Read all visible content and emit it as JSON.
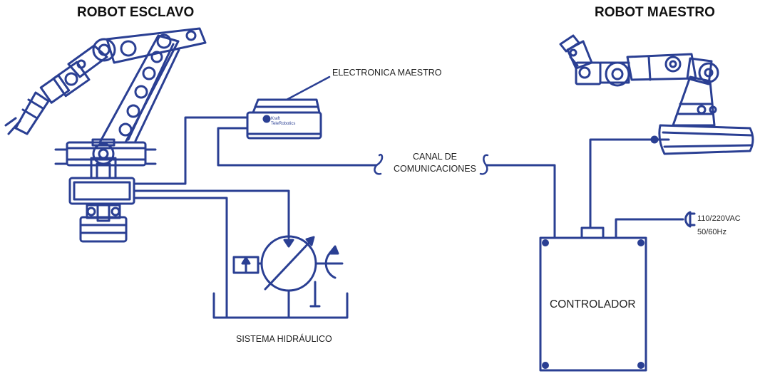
{
  "titles": {
    "slave_robot": "ROBOT ESCLAVO",
    "master_robot": "ROBOT MAESTRO"
  },
  "labels": {
    "master_electronics": "ELECTRONICA MAESTRO",
    "comm_channel_line1": "CANAL DE",
    "comm_channel_line2": "COMUNICACIONES",
    "hydraulic_system": "SISTEMA HIDRÁULICO",
    "controller": "CONTROLADOR",
    "power_voltage": "110/220VAC",
    "power_freq": "50/60Hz"
  },
  "device_text": {
    "brand_line1": "Kraft",
    "brand_line2": "TeleRobotics"
  },
  "colors": {
    "line": "#2a3f93",
    "text": "#222222"
  }
}
